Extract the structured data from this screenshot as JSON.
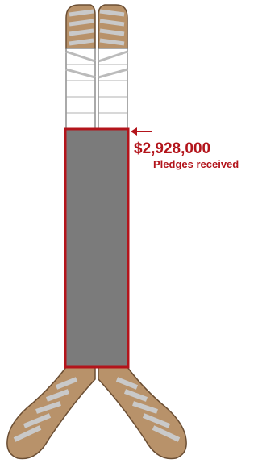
{
  "label": {
    "amount": "$2,928,000",
    "caption": "Pledges received"
  }
}
